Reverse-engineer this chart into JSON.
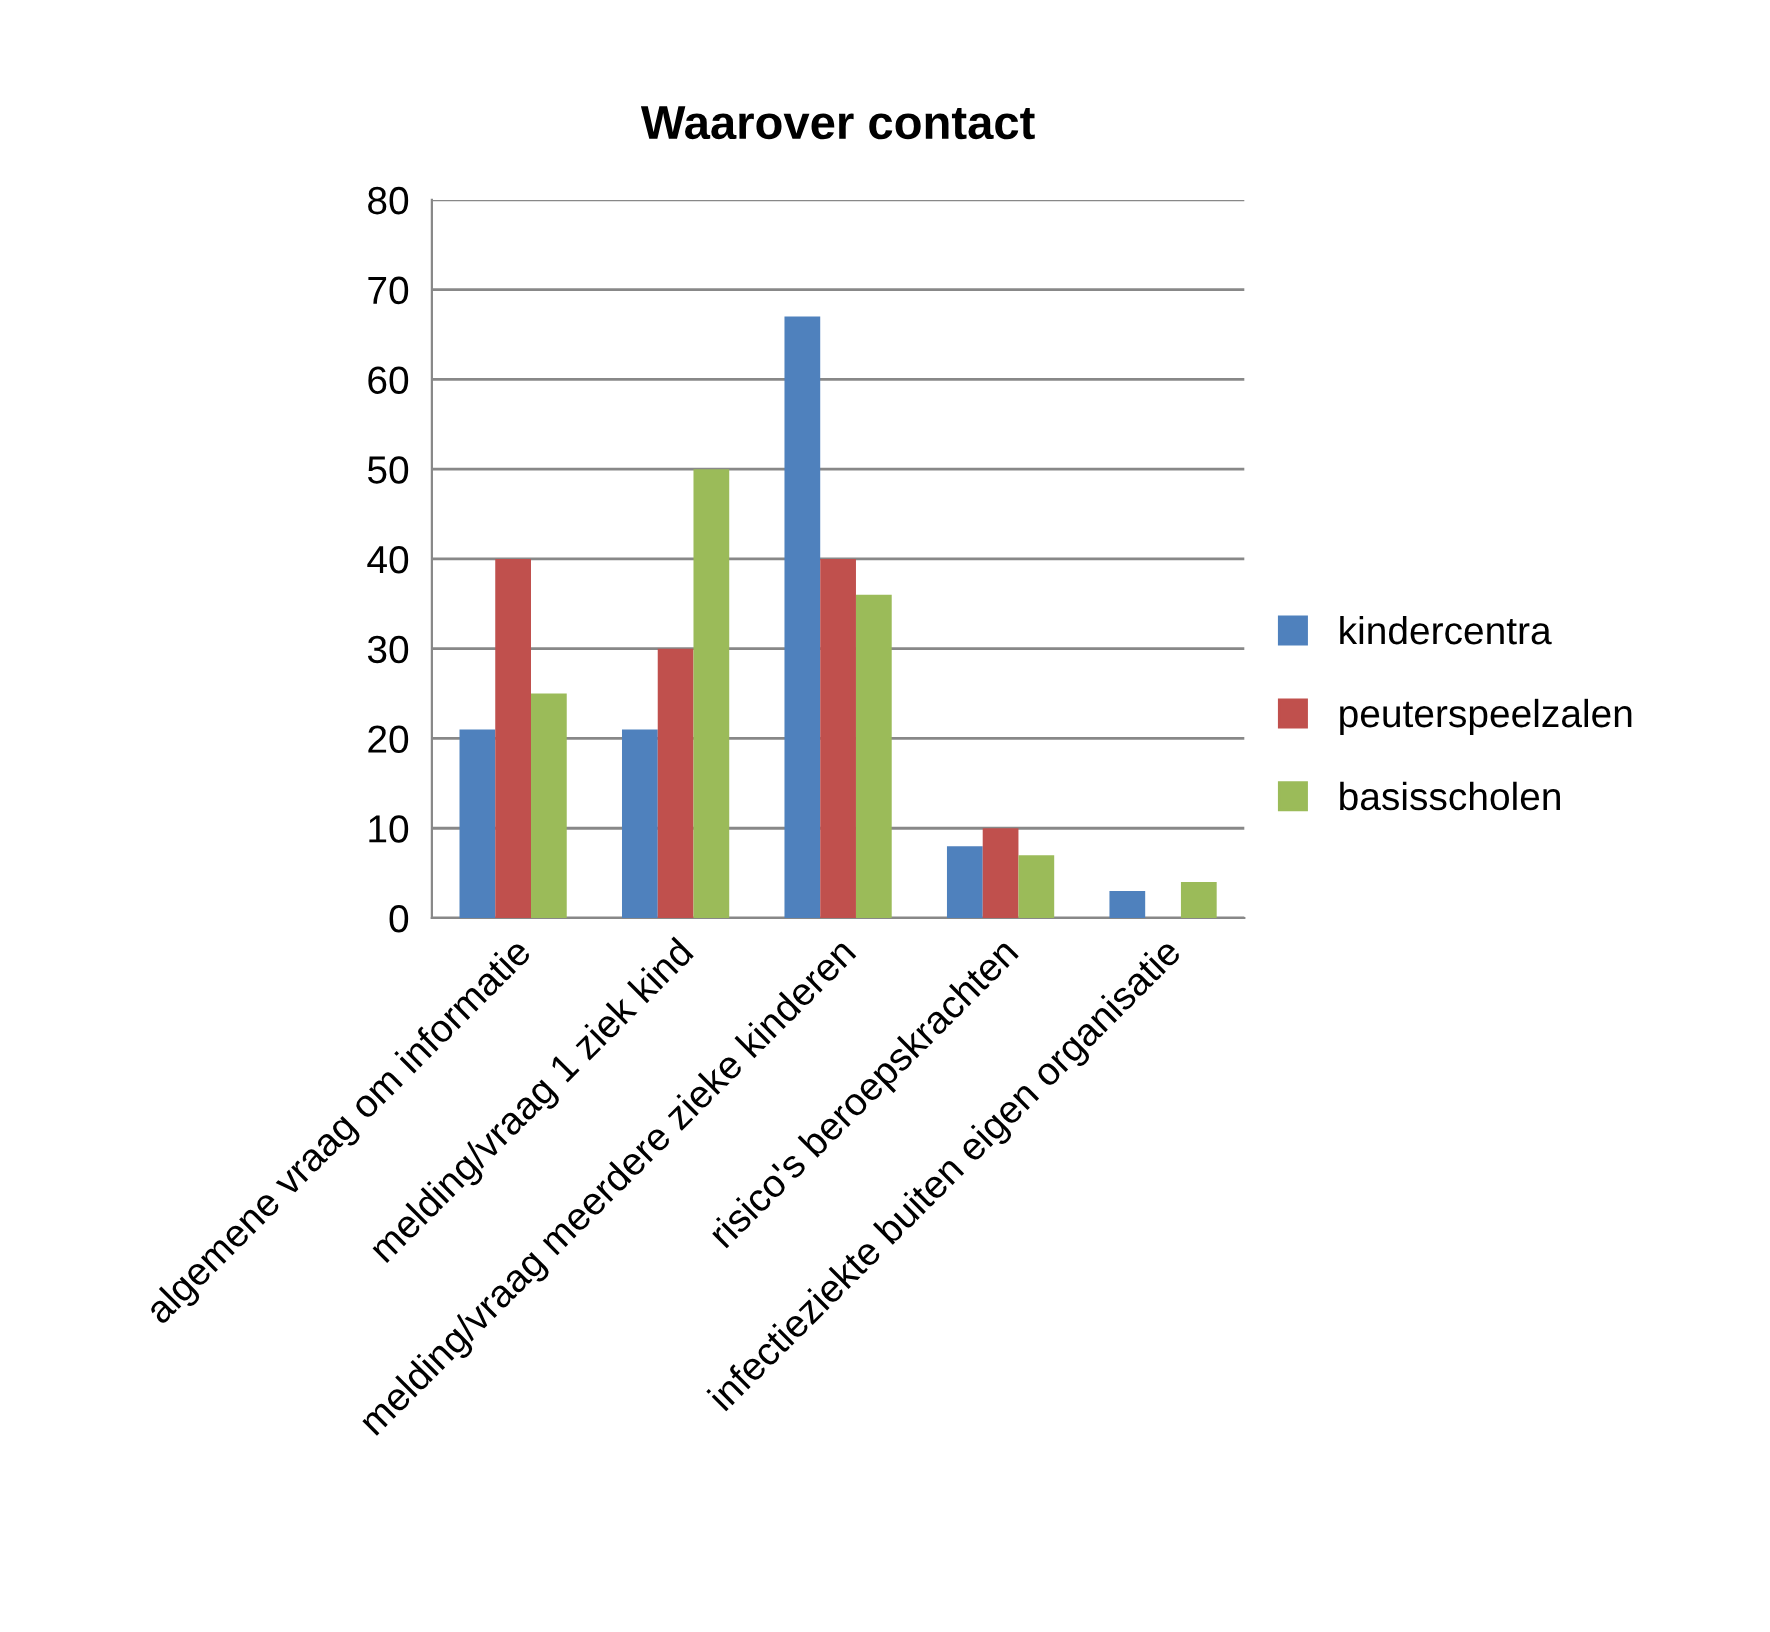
{
  "chart_data": {
    "type": "bar",
    "title": "Waarover contact",
    "categories": [
      "algemene vraag om informatie",
      "melding/vraag 1 ziek kind",
      "melding/vraag meerdere zieke kinderen",
      "risico's beroepskrachten",
      "infectieziekte buiten eigen organisatie"
    ],
    "series": [
      {
        "name": "kindercentra",
        "color": "#4f81bd",
        "values": [
          21,
          21,
          67,
          8,
          3
        ]
      },
      {
        "name": "peuterspeelzalen",
        "color": "#c0504d",
        "values": [
          40,
          30,
          40,
          10,
          0
        ]
      },
      {
        "name": "basisscholen",
        "color": "#9bbb59",
        "values": [
          25,
          50,
          36,
          7,
          4
        ]
      }
    ],
    "ylim": [
      0,
      80
    ],
    "yticks": [
      0,
      10,
      20,
      30,
      40,
      50,
      60,
      70,
      80
    ],
    "grid": "y",
    "legend": "right"
  }
}
